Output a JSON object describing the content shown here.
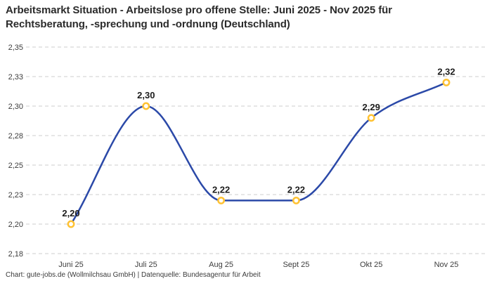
{
  "header": {
    "title_lines": [
      "Arbeitsmarkt Situation - Arbeitslose pro offene Stelle: Juni 2025 - Nov 2025 für",
      "Rechtsberatung, -sprechung und -ordnung (Deutschland)"
    ]
  },
  "footer": {
    "source": "Chart: gute-jobs.de (Wollmilchsau GmbH) | Datenquelle: Bundesagentur für Arbeit"
  },
  "chart_data": {
    "type": "line",
    "title": "Arbeitsmarkt Situation - Arbeitslose pro offene Stelle: Juni 2025 - Nov 2025 für Rechtsberatung, -sprechung und -ordnung (Deutschland)",
    "categories": [
      "Juni 25",
      "Juli 25",
      "Aug 25",
      "Sept 25",
      "Okt 25",
      "Nov 25"
    ],
    "values": [
      2.2,
      2.3,
      2.22,
      2.22,
      2.29,
      2.32
    ],
    "value_labels": [
      "2,20",
      "2,30",
      "2,22",
      "2,22",
      "2,29",
      "2,32"
    ],
    "xlabel": "",
    "ylabel": "",
    "ylim": [
      2.175,
      2.35
    ],
    "y_tick_values": [
      2.35,
      2.325,
      2.3,
      2.275,
      2.25,
      2.225,
      2.2,
      2.175
    ],
    "y_tick_labels": [
      "2,35",
      "2,33",
      "2,30",
      "2,28",
      "2,25",
      "2,23",
      "2,20",
      "2,18"
    ],
    "grid": "dashed-horizontal",
    "legend": "none",
    "curve": "monotone",
    "line_color": "#2b49a8",
    "marker_color": "#ffc233",
    "marker_fill": "#ffffff",
    "grid_color": "#cccccc",
    "label_color": "#1c1c1c",
    "axis_text_color": "#3c3c3c"
  }
}
